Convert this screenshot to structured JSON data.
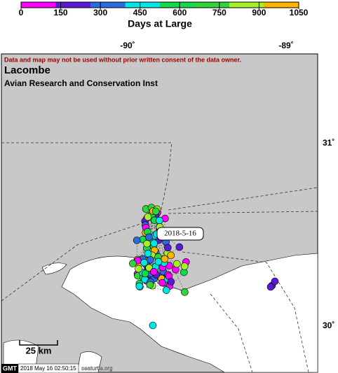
{
  "colorbar": {
    "ticks": [
      0,
      150,
      300,
      450,
      600,
      750,
      900,
      1050
    ],
    "colors": [
      "#ff00ff",
      "#5a1ad6",
      "#2b6be0",
      "#00e5e5",
      "#14d94a",
      "#2fd63a",
      "#a6f02a",
      "#ffb400"
    ],
    "label": "Days at Large"
  },
  "map": {
    "lon_labels": [
      "-90˚",
      "-89˚"
    ],
    "lat_labels": [
      "31˚",
      "30˚"
    ],
    "notice": "Data and map may not be used without prior written consent of the data owner.",
    "title": "Lacombe",
    "subtitle": "Avian Research and Conservation Inst",
    "date_label": "2018-5-16",
    "scale": "25 km"
  },
  "footer": {
    "logo": "GMT",
    "timestamp": "2018 May 16 02:50:15",
    "site": "seaturtle.org"
  }
}
